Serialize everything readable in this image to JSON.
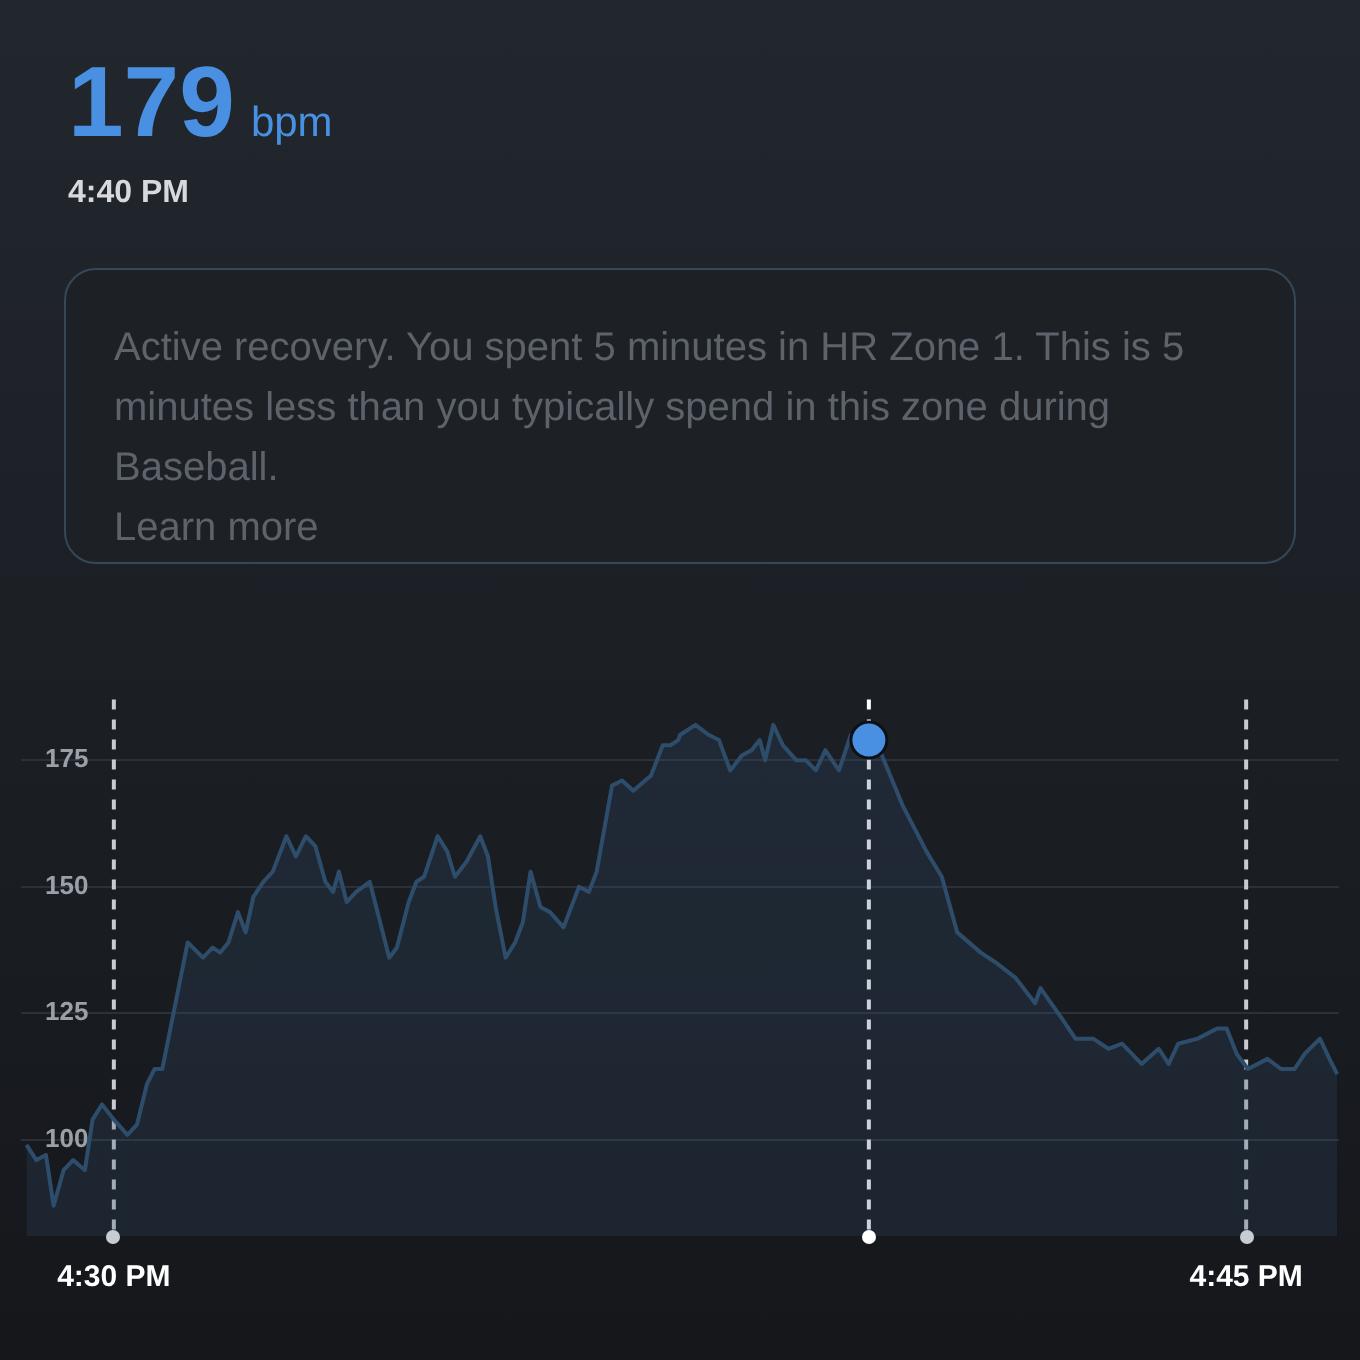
{
  "chart_data": {
    "type": "area",
    "title": "179 bpm",
    "subtitle": "4:40 PM",
    "annotations": [
      "Active recovery. You spent 5 minutes in HR Zone 1. This is 5 minutes less than you typically spend in this zone during Baseball.",
      "Learn more"
    ],
    "x": [
      16.4807,
      16.4829,
      16.485,
      16.4867,
      16.4889,
      16.491,
      16.4936,
      16.4953,
      16.4974,
      16.5,
      16.503,
      16.5051,
      16.5073,
      16.509,
      16.5107,
      16.5163,
      16.5197,
      16.5218,
      16.5235,
      16.5253,
      16.5274,
      16.5291,
      16.5308,
      16.533,
      16.5351,
      16.5381,
      16.5402,
      16.5424,
      16.5445,
      16.5467,
      16.5484,
      16.5497,
      16.5514,
      16.5535,
      16.5565,
      16.5608,
      16.5625,
      16.5651,
      16.5668,
      16.5685,
      16.5715,
      16.5736,
      16.5753,
      16.5779,
      16.5809,
      16.5826,
      16.5843,
      16.5865,
      16.5886,
      16.5903,
      16.592,
      16.5942,
      16.5963,
      16.5993,
      16.6027,
      16.6049,
      16.6066,
      16.61,
      16.6122,
      16.6147,
      16.6173,
      16.6186,
      16.6212,
      16.6229,
      16.6246,
      16.625,
      16.6284,
      16.6314,
      16.6336,
      16.6361,
      16.6387,
      16.6408,
      16.6426,
      16.6438,
      16.6456,
      16.6477,
      16.6507,
      16.6528,
      16.655,
      16.6571,
      16.6601,
      16.6627,
      16.6667,
      16.6691,
      16.6742,
      16.6794,
      16.6828,
      16.6862,
      16.6914,
      16.6948,
      16.6991,
      16.7034,
      16.7046,
      16.7093,
      16.7123,
      16.7162,
      16.7196,
      16.7226,
      16.7269,
      16.7307,
      16.7329,
      16.735,
      16.7393,
      16.7436,
      16.7457,
      16.7479,
      16.7504,
      16.7547,
      16.7577,
      16.7607,
      16.7629,
      16.7663,
      16.7684,
      16.7701
    ],
    "series": [
      {
        "type": "area",
        "color": "#2e4d6b",
        "marker": "none",
        "values": [
          99,
          96,
          97,
          87,
          94,
          96,
          94,
          104,
          107,
          104,
          101,
          103,
          111,
          114,
          114,
          139,
          136,
          138,
          137,
          139,
          145,
          141,
          148,
          151,
          153,
          160,
          156,
          160,
          158,
          151,
          149,
          153,
          147,
          149,
          151,
          136,
          138,
          147,
          151,
          152,
          160,
          157,
          152,
          155,
          160,
          156,
          146,
          136,
          139,
          143,
          153,
          146,
          145,
          142,
          150,
          149,
          153,
          170,
          171,
          169,
          171,
          172,
          178,
          178,
          179,
          180,
          182,
          180,
          179,
          173,
          176,
          177,
          179,
          175,
          182,
          178,
          175,
          175,
          173,
          177,
          173,
          180,
          179,
          177,
          166,
          157,
          152,
          141,
          137,
          135,
          132,
          127,
          130,
          124,
          120,
          120,
          118,
          119,
          115,
          118,
          115,
          119,
          120,
          122,
          122,
          117,
          114,
          116,
          114,
          114,
          117,
          120,
          116,
          113
        ]
      },
      {
        "type": "scatter",
        "color": "#4a90e2",
        "marker": "circle",
        "x": [
          16.6667
        ],
        "values": [
          179
        ]
      }
    ],
    "xlim": [
      16.4795,
      16.7705
    ],
    "xticks": [
      {
        "value": 16.5,
        "label": "4:30 PM"
      },
      {
        "value": 16.75,
        "label": "4:45 PM"
      }
    ],
    "ylim": [
      81,
      187
    ],
    "yticks": [
      100,
      125,
      150,
      175
    ],
    "grid": "y",
    "ref_lines": [
      {
        "axis": "x",
        "value": 16.5,
        "color": "#c8ccd2",
        "line_style": "dashed"
      },
      {
        "axis": "x",
        "value": 16.6667,
        "color": "#ffffff",
        "line_style": "dashed"
      },
      {
        "axis": "x",
        "value": 16.75,
        "color": "#c8ccd2",
        "line_style": "dashed"
      }
    ]
  }
}
